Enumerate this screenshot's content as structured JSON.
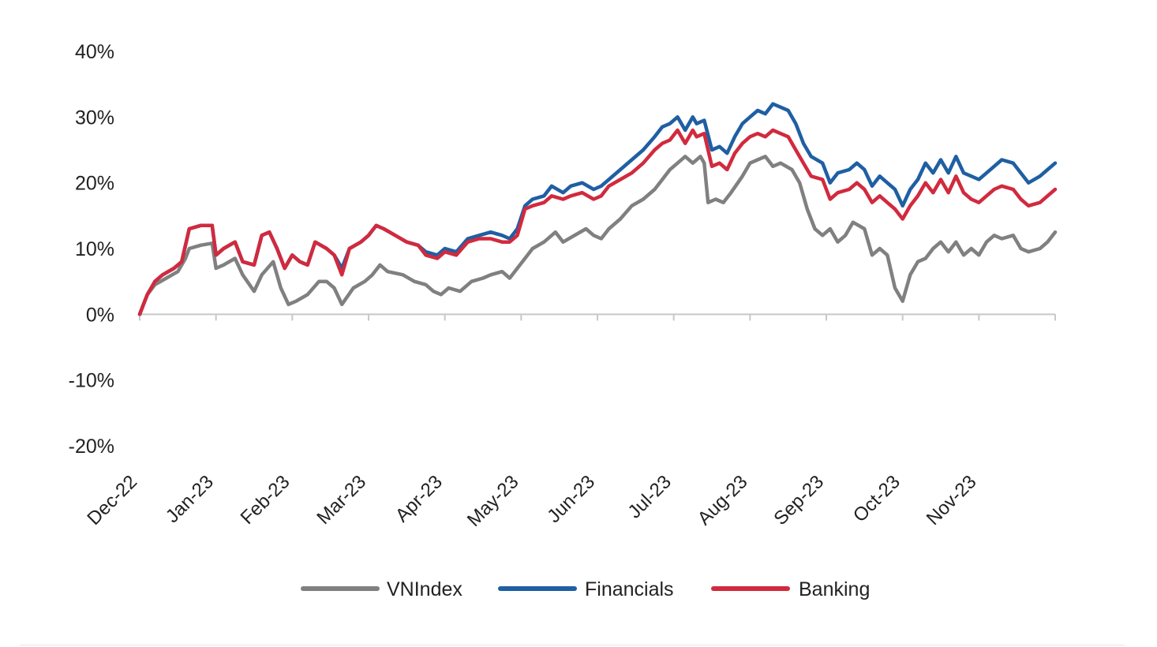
{
  "chart_data": {
    "type": "line",
    "title": "",
    "xlabel": "",
    "ylabel": "",
    "ylim": [
      -20,
      40
    ],
    "yticks": [
      "40%",
      "30%",
      "20%",
      "10%",
      "0%",
      "-10%",
      "-20%"
    ],
    "yticks_values": [
      40,
      30,
      20,
      10,
      0,
      -10,
      -20
    ],
    "x_categories": [
      "Dec-22",
      "Jan-23",
      "Feb-23",
      "Mar-23",
      "Apr-23",
      "May-23",
      "Jun-23",
      "Jul-23",
      "Aug-23",
      "Sep-23",
      "Oct-23",
      "Nov-23"
    ],
    "x_range": [
      0,
      12
    ],
    "grid": false,
    "legend_position": "bottom-center",
    "series": [
      {
        "name": "VNIndex",
        "color": "#808080",
        "points": [
          [
            0,
            0
          ],
          [
            0.05,
            1.5
          ],
          [
            0.1,
            3
          ],
          [
            0.2,
            4.5
          ],
          [
            0.35,
            5.5
          ],
          [
            0.5,
            6.5
          ],
          [
            0.6,
            8.5
          ],
          [
            0.65,
            10
          ],
          [
            0.8,
            10.5
          ],
          [
            0.95,
            10.8
          ],
          [
            1.0,
            7
          ],
          [
            1.1,
            7.5
          ],
          [
            1.25,
            8.5
          ],
          [
            1.35,
            6
          ],
          [
            1.5,
            3.5
          ],
          [
            1.6,
            6
          ],
          [
            1.75,
            8
          ],
          [
            1.85,
            4
          ],
          [
            1.95,
            1.5
          ],
          [
            2.05,
            2
          ],
          [
            2.2,
            3
          ],
          [
            2.35,
            5
          ],
          [
            2.45,
            5
          ],
          [
            2.55,
            4
          ],
          [
            2.65,
            1.5
          ],
          [
            2.8,
            4
          ],
          [
            2.95,
            5
          ],
          [
            3.05,
            6
          ],
          [
            3.15,
            7.5
          ],
          [
            3.25,
            6.5
          ],
          [
            3.45,
            6
          ],
          [
            3.6,
            5
          ],
          [
            3.75,
            4.5
          ],
          [
            3.85,
            3.5
          ],
          [
            3.95,
            3
          ],
          [
            4.05,
            4
          ],
          [
            4.2,
            3.5
          ],
          [
            4.35,
            5
          ],
          [
            4.5,
            5.5
          ],
          [
            4.6,
            6
          ],
          [
            4.75,
            6.5
          ],
          [
            4.85,
            5.5
          ],
          [
            4.95,
            7
          ],
          [
            5.05,
            8.5
          ],
          [
            5.15,
            10
          ],
          [
            5.3,
            11
          ],
          [
            5.45,
            12.5
          ],
          [
            5.55,
            11
          ],
          [
            5.7,
            12
          ],
          [
            5.85,
            13
          ],
          [
            5.95,
            12
          ],
          [
            6.05,
            11.5
          ],
          [
            6.15,
            13
          ],
          [
            6.3,
            14.5
          ],
          [
            6.45,
            16.5
          ],
          [
            6.6,
            17.5
          ],
          [
            6.75,
            19
          ],
          [
            6.85,
            20.5
          ],
          [
            6.95,
            22
          ],
          [
            7.05,
            23
          ],
          [
            7.15,
            24
          ],
          [
            7.25,
            23
          ],
          [
            7.35,
            24
          ],
          [
            7.4,
            23
          ],
          [
            7.45,
            17
          ],
          [
            7.55,
            17.5
          ],
          [
            7.65,
            17
          ],
          [
            7.75,
            18.5
          ],
          [
            7.9,
            21
          ],
          [
            8.0,
            23
          ],
          [
            8.1,
            23.5
          ],
          [
            8.2,
            24
          ],
          [
            8.3,
            22.5
          ],
          [
            8.4,
            23
          ],
          [
            8.55,
            22
          ],
          [
            8.65,
            20
          ],
          [
            8.75,
            16
          ],
          [
            8.85,
            13
          ],
          [
            8.95,
            12
          ],
          [
            9.05,
            13
          ],
          [
            9.15,
            11
          ],
          [
            9.25,
            12
          ],
          [
            9.35,
            14
          ],
          [
            9.5,
            13
          ],
          [
            9.6,
            9
          ],
          [
            9.7,
            10
          ],
          [
            9.8,
            9
          ],
          [
            9.9,
            4
          ],
          [
            10.0,
            2
          ],
          [
            10.1,
            6
          ],
          [
            10.2,
            8
          ],
          [
            10.3,
            8.5
          ],
          [
            10.4,
            10
          ],
          [
            10.5,
            11
          ],
          [
            10.6,
            9.5
          ],
          [
            10.7,
            11
          ],
          [
            10.8,
            9
          ],
          [
            10.9,
            10
          ],
          [
            11.0,
            9
          ],
          [
            11.1,
            11
          ],
          [
            11.2,
            12
          ],
          [
            11.3,
            11.5
          ],
          [
            11.45,
            12
          ],
          [
            11.55,
            10
          ],
          [
            11.65,
            9.5
          ],
          [
            11.8,
            10
          ],
          [
            11.9,
            11
          ],
          [
            12.0,
            12.5
          ]
        ]
      },
      {
        "name": "Financials",
        "color": "#1f5fa3",
        "points": [
          [
            0,
            0
          ],
          [
            0.05,
            1.5
          ],
          [
            0.1,
            3
          ],
          [
            0.2,
            5
          ],
          [
            0.3,
            6
          ],
          [
            0.45,
            7
          ],
          [
            0.55,
            8
          ],
          [
            0.65,
            13
          ],
          [
            0.8,
            13.5
          ],
          [
            0.95,
            13.5
          ],
          [
            1.0,
            9
          ],
          [
            1.1,
            10
          ],
          [
            1.25,
            11
          ],
          [
            1.35,
            8
          ],
          [
            1.5,
            7.5
          ],
          [
            1.6,
            12
          ],
          [
            1.7,
            12.5
          ],
          [
            1.8,
            10
          ],
          [
            1.9,
            7
          ],
          [
            2.0,
            9
          ],
          [
            2.1,
            8
          ],
          [
            2.2,
            7.5
          ],
          [
            2.3,
            11
          ],
          [
            2.45,
            10
          ],
          [
            2.55,
            9
          ],
          [
            2.65,
            7
          ],
          [
            2.75,
            10
          ],
          [
            2.9,
            11
          ],
          [
            3.0,
            12
          ],
          [
            3.1,
            13.5
          ],
          [
            3.2,
            13
          ],
          [
            3.35,
            12
          ],
          [
            3.5,
            11
          ],
          [
            3.65,
            10.5
          ],
          [
            3.75,
            9.5
          ],
          [
            3.9,
            9
          ],
          [
            4.0,
            10
          ],
          [
            4.15,
            9.5
          ],
          [
            4.3,
            11.5
          ],
          [
            4.45,
            12
          ],
          [
            4.6,
            12.5
          ],
          [
            4.75,
            12
          ],
          [
            4.85,
            11.5
          ],
          [
            4.95,
            13
          ],
          [
            5.05,
            16.5
          ],
          [
            5.15,
            17.5
          ],
          [
            5.3,
            18
          ],
          [
            5.4,
            19.5
          ],
          [
            5.55,
            18.5
          ],
          [
            5.65,
            19.5
          ],
          [
            5.8,
            20
          ],
          [
            5.95,
            19
          ],
          [
            6.05,
            19.5
          ],
          [
            6.15,
            20.5
          ],
          [
            6.3,
            22
          ],
          [
            6.45,
            23.5
          ],
          [
            6.6,
            25
          ],
          [
            6.75,
            27
          ],
          [
            6.85,
            28.5
          ],
          [
            6.95,
            29
          ],
          [
            7.05,
            30
          ],
          [
            7.15,
            28
          ],
          [
            7.25,
            30
          ],
          [
            7.3,
            29
          ],
          [
            7.4,
            29.5
          ],
          [
            7.5,
            25
          ],
          [
            7.6,
            25.5
          ],
          [
            7.7,
            24.5
          ],
          [
            7.8,
            27
          ],
          [
            7.9,
            29
          ],
          [
            8.0,
            30
          ],
          [
            8.1,
            31
          ],
          [
            8.2,
            30.5
          ],
          [
            8.3,
            32
          ],
          [
            8.4,
            31.5
          ],
          [
            8.5,
            31
          ],
          [
            8.6,
            29
          ],
          [
            8.7,
            26
          ],
          [
            8.8,
            24
          ],
          [
            8.95,
            23
          ],
          [
            9.05,
            20
          ],
          [
            9.15,
            21.5
          ],
          [
            9.3,
            22
          ],
          [
            9.4,
            23
          ],
          [
            9.5,
            22
          ],
          [
            9.6,
            19.5
          ],
          [
            9.7,
            21
          ],
          [
            9.8,
            20
          ],
          [
            9.9,
            19
          ],
          [
            10.0,
            16.5
          ],
          [
            10.1,
            19
          ],
          [
            10.2,
            20.5
          ],
          [
            10.3,
            23
          ],
          [
            10.4,
            21.5
          ],
          [
            10.5,
            23.5
          ],
          [
            10.6,
            21.5
          ],
          [
            10.7,
            24
          ],
          [
            10.8,
            21.5
          ],
          [
            10.9,
            21
          ],
          [
            11.0,
            20.5
          ],
          [
            11.1,
            21.5
          ],
          [
            11.2,
            22.5
          ],
          [
            11.3,
            23.5
          ],
          [
            11.45,
            23
          ],
          [
            11.55,
            21.5
          ],
          [
            11.65,
            20
          ],
          [
            11.8,
            21
          ],
          [
            11.9,
            22
          ],
          [
            12.0,
            23
          ]
        ]
      },
      {
        "name": "Banking",
        "color": "#d12a3e",
        "points": [
          [
            0,
            0
          ],
          [
            0.05,
            1.5
          ],
          [
            0.1,
            3
          ],
          [
            0.2,
            5
          ],
          [
            0.3,
            6
          ],
          [
            0.45,
            7
          ],
          [
            0.55,
            8
          ],
          [
            0.65,
            13
          ],
          [
            0.8,
            13.5
          ],
          [
            0.95,
            13.5
          ],
          [
            1.0,
            9
          ],
          [
            1.1,
            10
          ],
          [
            1.25,
            11
          ],
          [
            1.35,
            8
          ],
          [
            1.5,
            7.5
          ],
          [
            1.6,
            12
          ],
          [
            1.7,
            12.5
          ],
          [
            1.8,
            10
          ],
          [
            1.9,
            7
          ],
          [
            2.0,
            9
          ],
          [
            2.1,
            8
          ],
          [
            2.2,
            7.5
          ],
          [
            2.3,
            11
          ],
          [
            2.45,
            10
          ],
          [
            2.55,
            9
          ],
          [
            2.65,
            6
          ],
          [
            2.75,
            10
          ],
          [
            2.9,
            11
          ],
          [
            3.0,
            12
          ],
          [
            3.1,
            13.5
          ],
          [
            3.2,
            13
          ],
          [
            3.35,
            12
          ],
          [
            3.5,
            11
          ],
          [
            3.65,
            10.5
          ],
          [
            3.75,
            9
          ],
          [
            3.9,
            8.5
          ],
          [
            4.0,
            9.5
          ],
          [
            4.15,
            9
          ],
          [
            4.3,
            11
          ],
          [
            4.45,
            11.5
          ],
          [
            4.6,
            11.5
          ],
          [
            4.75,
            11
          ],
          [
            4.85,
            11
          ],
          [
            4.95,
            12
          ],
          [
            5.05,
            16
          ],
          [
            5.15,
            16.5
          ],
          [
            5.3,
            17
          ],
          [
            5.4,
            18
          ],
          [
            5.55,
            17.5
          ],
          [
            5.65,
            18
          ],
          [
            5.8,
            18.5
          ],
          [
            5.95,
            17.5
          ],
          [
            6.05,
            18
          ],
          [
            6.15,
            19.5
          ],
          [
            6.3,
            20.5
          ],
          [
            6.45,
            21.5
          ],
          [
            6.6,
            23
          ],
          [
            6.75,
            25
          ],
          [
            6.85,
            26
          ],
          [
            6.95,
            26.5
          ],
          [
            7.05,
            28
          ],
          [
            7.15,
            26
          ],
          [
            7.25,
            28
          ],
          [
            7.3,
            27
          ],
          [
            7.4,
            27.5
          ],
          [
            7.5,
            22.5
          ],
          [
            7.6,
            23
          ],
          [
            7.7,
            22
          ],
          [
            7.8,
            24.5
          ],
          [
            7.9,
            26
          ],
          [
            8.0,
            27
          ],
          [
            8.1,
            27.5
          ],
          [
            8.2,
            27
          ],
          [
            8.3,
            28
          ],
          [
            8.4,
            27.5
          ],
          [
            8.5,
            27
          ],
          [
            8.6,
            25
          ],
          [
            8.7,
            23
          ],
          [
            8.8,
            21
          ],
          [
            8.95,
            20.5
          ],
          [
            9.05,
            17.5
          ],
          [
            9.15,
            18.5
          ],
          [
            9.3,
            19
          ],
          [
            9.4,
            20
          ],
          [
            9.5,
            19
          ],
          [
            9.6,
            17
          ],
          [
            9.7,
            18
          ],
          [
            9.8,
            17
          ],
          [
            9.9,
            16
          ],
          [
            10.0,
            14.5
          ],
          [
            10.1,
            16.5
          ],
          [
            10.2,
            18
          ],
          [
            10.3,
            20
          ],
          [
            10.4,
            18.5
          ],
          [
            10.5,
            20.5
          ],
          [
            10.6,
            18.5
          ],
          [
            10.7,
            21
          ],
          [
            10.8,
            18.5
          ],
          [
            10.9,
            17.5
          ],
          [
            11.0,
            17
          ],
          [
            11.1,
            18
          ],
          [
            11.2,
            19
          ],
          [
            11.3,
            19.5
          ],
          [
            11.45,
            19
          ],
          [
            11.55,
            17.5
          ],
          [
            11.65,
            16.5
          ],
          [
            11.8,
            17
          ],
          [
            11.9,
            18
          ],
          [
            12.0,
            19
          ]
        ]
      }
    ]
  }
}
